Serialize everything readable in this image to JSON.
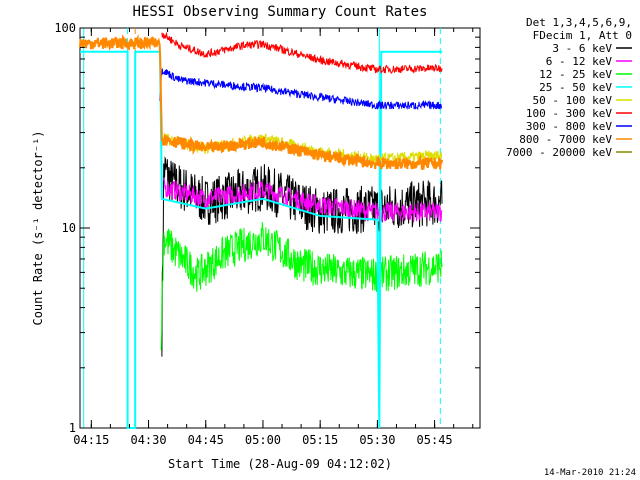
{
  "chart_data": {
    "type": "line",
    "title": "HESSI Observing Summary Count Rates",
    "xlabel": "Start Time (28-Aug-09 04:12:02)",
    "ylabel": "Count Rate (s⁻¹ detector⁻¹)",
    "x_unit": "minutes of day (UT)",
    "xlim": [
      252.033,
      356.9
    ],
    "ylim": [
      1,
      100
    ],
    "y_scale": "log",
    "x_ticks": [
      {
        "value": 255,
        "label": "04:15"
      },
      {
        "value": 270,
        "label": "04:30"
      },
      {
        "value": 285,
        "label": "04:45"
      },
      {
        "value": 300,
        "label": "05:00"
      },
      {
        "value": 315,
        "label": "05:15"
      },
      {
        "value": 330,
        "label": "05:30"
      },
      {
        "value": 345,
        "label": "05:45"
      }
    ],
    "y_ticks": [
      {
        "value": 1,
        "label": "1"
      },
      {
        "value": 10,
        "label": "10"
      },
      {
        "value": 100,
        "label": "100"
      }
    ],
    "legend_header": [
      "Det 1,3,4,5,6,9,",
      "FDecim 1, Att 0"
    ],
    "legend_position": "right",
    "series": [
      {
        "name": "3 - 6 keV",
        "color": "#000000",
        "points": [
          [
            273.5,
            3.0
          ],
          [
            274.0,
            20.0
          ],
          [
            276,
            17.0
          ],
          [
            285,
            13.5
          ],
          [
            300,
            16.0
          ],
          [
            315,
            12.0
          ],
          [
            330,
            12.5
          ],
          [
            347,
            13.5
          ]
        ],
        "noise": 0.12
      },
      {
        "name": "6 - 12 keV",
        "color": "#ff00ff",
        "points": [
          [
            274,
            16.0
          ],
          [
            285,
            14.0
          ],
          [
            300,
            15.5
          ],
          [
            315,
            13.0
          ],
          [
            330,
            12.0
          ],
          [
            347,
            12.0
          ]
        ],
        "noise": 0.05
      },
      {
        "name": "12 - 25 keV",
        "color": "#00ff00",
        "points": [
          [
            273.3,
            3.0
          ],
          [
            274,
            9.0
          ],
          [
            276,
            8.0
          ],
          [
            283,
            5.8
          ],
          [
            290,
            7.5
          ],
          [
            300,
            9.0
          ],
          [
            310,
            6.5
          ],
          [
            320,
            6.0
          ],
          [
            330,
            5.8
          ],
          [
            347,
            6.5
          ]
        ],
        "noise": 0.09
      },
      {
        "name": "25 - 50 keV",
        "color": "#00ffff",
        "points": [
          [
            252.033,
            76.0
          ],
          [
            264.5,
            76.0
          ],
          [
            264.5,
            1.0
          ],
          [
            266.5,
            1.0
          ],
          [
            266.5,
            76.0
          ],
          [
            273.0,
            76.0
          ],
          [
            273.5,
            14.0
          ],
          [
            285,
            12.5
          ],
          [
            300,
            14.0
          ],
          [
            315,
            11.5
          ],
          [
            330,
            11.0
          ],
          [
            330.5,
            1.0
          ],
          [
            331.0,
            76.0
          ],
          [
            347,
            76.0
          ]
        ],
        "noise": 0.0
      },
      {
        "name": "50 - 100 keV",
        "color": "#dddd00",
        "points": [
          [
            274,
            28.0
          ],
          [
            285,
            25.0
          ],
          [
            300,
            28.0
          ],
          [
            315,
            24.0
          ],
          [
            330,
            22.0
          ],
          [
            347,
            23.0
          ]
        ],
        "noise": 0.03
      },
      {
        "name": "100 - 300 keV",
        "color": "#ff0000",
        "points": [
          [
            273.5,
            94.0
          ],
          [
            278,
            82.0
          ],
          [
            285,
            74.0
          ],
          [
            295,
            82.0
          ],
          [
            300,
            83.0
          ],
          [
            315,
            69.0
          ],
          [
            330,
            62.0
          ],
          [
            347,
            63.0
          ]
        ],
        "noise": 0.02
      },
      {
        "name": "300 - 800 keV",
        "color": "#0000ff",
        "points": [
          [
            273.0,
            45.0
          ],
          [
            273.5,
            62.0
          ],
          [
            278,
            55.0
          ],
          [
            290,
            52.0
          ],
          [
            300,
            50.0
          ],
          [
            315,
            45.0
          ],
          [
            330,
            41.0
          ],
          [
            347,
            41.0
          ]
        ],
        "noise": 0.02
      },
      {
        "name": "800 - 7000 keV",
        "color": "#ff8800",
        "points": [
          [
            252.033,
            84.0
          ],
          [
            273.0,
            84.0
          ],
          [
            273.5,
            28.0
          ],
          [
            285,
            25.0
          ],
          [
            300,
            27.0
          ],
          [
            315,
            23.0
          ],
          [
            330,
            21.0
          ],
          [
            347,
            21.0
          ]
        ],
        "noise": 0.03
      },
      {
        "name": "7000 - 20000 keV",
        "color": "#888800",
        "points": [
          [
            274,
            2.0
          ]
        ],
        "noise": 0.0
      }
    ],
    "vertical_lines": [
      {
        "x": 253.0,
        "style": "solid",
        "color": "#00ffff"
      },
      {
        "x": 264.5,
        "style": "dashed",
        "color": "#00ffff"
      },
      {
        "x": 266.5,
        "style": "dashed",
        "color": "#ff8800"
      },
      {
        "x": 330.5,
        "style": "solid",
        "color": "#00ffff"
      },
      {
        "x": 346.5,
        "style": "dashed",
        "color": "#00ffff"
      }
    ]
  },
  "footer": {
    "timestamp": "14-Mar-2010 21:24"
  }
}
